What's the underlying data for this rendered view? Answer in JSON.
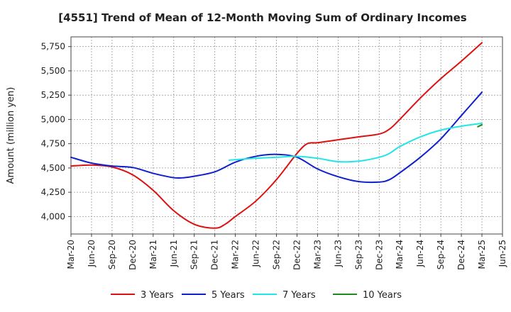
{
  "chart_data": {
    "type": "line",
    "title": "[4551]  Trend of Mean of 12-Month Moving Sum of Ordinary Incomes",
    "xlabel": "",
    "ylabel": "Amount (million yen)",
    "ylim": [
      3820,
      5850
    ],
    "xlim": [
      0,
      21
    ],
    "grid": true,
    "legend_position": "bottom",
    "x_tick_labels": [
      "Mar-20",
      "Jun-20",
      "Sep-20",
      "Dec-20",
      "Mar-21",
      "Jun-21",
      "Sep-21",
      "Dec-21",
      "Mar-22",
      "Jun-22",
      "Sep-22",
      "Dec-22",
      "Mar-23",
      "Jun-23",
      "Sep-23",
      "Dec-23",
      "Mar-24",
      "Jun-24",
      "Sep-24",
      "Dec-24",
      "Mar-25",
      "Jun-25"
    ],
    "y_ticks": [
      4000,
      4250,
      4500,
      4750,
      5000,
      5250,
      5500,
      5750
    ],
    "y_tick_labels": [
      "4,000",
      "4,250",
      "4,500",
      "4,750",
      "5,000",
      "5,250",
      "5,500",
      "5,750"
    ],
    "series": [
      {
        "name": "3 Years",
        "color": "#dd1111",
        "points": [
          [
            0,
            4520
          ],
          [
            1,
            4530
          ],
          [
            2,
            4510
          ],
          [
            3,
            4430
          ],
          [
            4,
            4270
          ],
          [
            5,
            4060
          ],
          [
            6,
            3920
          ],
          [
            7,
            3880
          ],
          [
            7.5,
            3920
          ],
          [
            8,
            4000
          ],
          [
            9,
            4160
          ],
          [
            10,
            4380
          ],
          [
            11,
            4650
          ],
          [
            11.5,
            4750
          ],
          [
            12,
            4760
          ],
          [
            13,
            4790
          ],
          [
            14,
            4820
          ],
          [
            15,
            4850
          ],
          [
            15.5,
            4900
          ],
          [
            16,
            5000
          ],
          [
            17,
            5220
          ],
          [
            18,
            5420
          ],
          [
            19,
            5600
          ],
          [
            20,
            5790
          ]
        ]
      },
      {
        "name": "5 Years",
        "color": "#1020cc",
        "points": [
          [
            0,
            4610
          ],
          [
            1,
            4550
          ],
          [
            2,
            4520
          ],
          [
            3,
            4505
          ],
          [
            4,
            4445
          ],
          [
            5,
            4400
          ],
          [
            5.5,
            4400
          ],
          [
            6,
            4415
          ],
          [
            7,
            4460
          ],
          [
            8,
            4560
          ],
          [
            9,
            4620
          ],
          [
            10,
            4640
          ],
          [
            11,
            4610
          ],
          [
            12,
            4490
          ],
          [
            13,
            4410
          ],
          [
            14,
            4360
          ],
          [
            15,
            4355
          ],
          [
            15.5,
            4380
          ],
          [
            16,
            4450
          ],
          [
            17,
            4610
          ],
          [
            18,
            4800
          ],
          [
            19,
            5040
          ],
          [
            20,
            5280
          ]
        ]
      },
      {
        "name": "7 Years",
        "color": "#22e5e5",
        "points": [
          [
            7.7,
            4580
          ],
          [
            8,
            4585
          ],
          [
            9,
            4600
          ],
          [
            10,
            4610
          ],
          [
            11,
            4620
          ],
          [
            12,
            4600
          ],
          [
            13,
            4565
          ],
          [
            14,
            4570
          ],
          [
            15,
            4610
          ],
          [
            15.5,
            4650
          ],
          [
            16,
            4720
          ],
          [
            17,
            4820
          ],
          [
            18,
            4890
          ],
          [
            19,
            4930
          ],
          [
            20,
            4960
          ]
        ]
      },
      {
        "name": "10 Years",
        "color": "#208a20",
        "points": [
          [
            19.8,
            4925
          ],
          [
            20,
            4945
          ]
        ]
      }
    ]
  }
}
